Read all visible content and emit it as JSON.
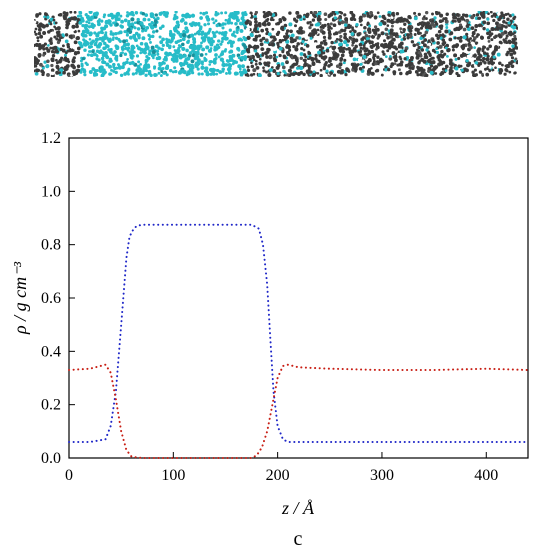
{
  "figure": {
    "panel_label": "c",
    "snapshot_image": "molecular-dynamics-snapshot",
    "snapshot_colors": {
      "liquid": "#27bcc8",
      "vapor": "#3b3b3b",
      "background": "#ffffff"
    }
  },
  "chart_data": {
    "type": "line",
    "xlabel": "z / Å",
    "ylabel": "ρ / g cm⁻³",
    "xlim": [
      0,
      440
    ],
    "ylim": [
      0.0,
      1.2
    ],
    "x_ticks": [
      "0",
      "100",
      "200",
      "300",
      "400"
    ],
    "x_tick_values": [
      0,
      100,
      200,
      300,
      400
    ],
    "y_ticks": [
      "0.0",
      "0.2",
      "0.4",
      "0.6",
      "0.8",
      "1.0",
      "1.2"
    ],
    "y_tick_values": [
      0.0,
      0.2,
      0.4,
      0.6,
      0.8,
      1.0,
      1.2
    ],
    "grid": false,
    "series": [
      {
        "color": "#1f27c8",
        "line_style": "dotted",
        "x": [
          0,
          20,
          35,
          40,
          45,
          50,
          55,
          58,
          62,
          65,
          70,
          80,
          100,
          150,
          175,
          182,
          186,
          190,
          193,
          196,
          200,
          205,
          210,
          220,
          250,
          300,
          350,
          400,
          440
        ],
        "y": [
          0.06,
          0.06,
          0.07,
          0.12,
          0.25,
          0.5,
          0.75,
          0.83,
          0.86,
          0.87,
          0.875,
          0.875,
          0.875,
          0.875,
          0.875,
          0.86,
          0.8,
          0.65,
          0.45,
          0.25,
          0.12,
          0.07,
          0.06,
          0.06,
          0.06,
          0.06,
          0.06,
          0.06,
          0.06
        ]
      },
      {
        "color": "#c81e14",
        "line_style": "dotted",
        "x": [
          0,
          20,
          35,
          40,
          45,
          50,
          55,
          60,
          70,
          100,
          150,
          175,
          180,
          185,
          190,
          195,
          200,
          205,
          210,
          220,
          250,
          300,
          350,
          400,
          440
        ],
        "y": [
          0.33,
          0.335,
          0.35,
          0.32,
          0.22,
          0.1,
          0.03,
          0.005,
          0.0,
          0.0,
          0.0,
          0.0,
          0.01,
          0.04,
          0.1,
          0.2,
          0.3,
          0.345,
          0.35,
          0.34,
          0.335,
          0.33,
          0.33,
          0.335,
          0.33
        ]
      }
    ]
  }
}
